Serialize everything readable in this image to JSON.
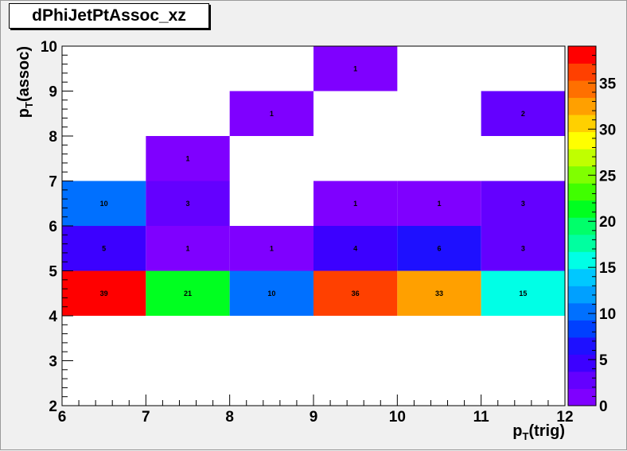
{
  "window": {
    "title": "dPhiJetPtAssoc_xz"
  },
  "chart_data": {
    "type": "heatmap",
    "title": "dPhiJetPtAssoc_xz",
    "xlabel": "p",
    "xlabel_sub": "T",
    "xlabel_rest": "(trig)",
    "ylabel": "p",
    "ylabel_sub": "T",
    "ylabel_rest": "(assoc)",
    "xlim": [
      6,
      12
    ],
    "ylim": [
      2,
      10
    ],
    "x_ticks": [
      "6",
      "7",
      "8",
      "9",
      "10",
      "11",
      "12"
    ],
    "y_ticks": [
      "2",
      "3",
      "4",
      "5",
      "6",
      "7",
      "8",
      "9",
      "10"
    ],
    "zlim": [
      0,
      39
    ],
    "z_ticks": [
      "0",
      "5",
      "10",
      "15",
      "20",
      "25",
      "30",
      "35"
    ],
    "bin_width_x": 1,
    "bin_width_y": 1,
    "cells": [
      {
        "x": 6,
        "y": 4,
        "value": 39,
        "label": "39"
      },
      {
        "x": 7,
        "y": 4,
        "value": 21,
        "label": "21"
      },
      {
        "x": 8,
        "y": 4,
        "value": 10,
        "label": "10"
      },
      {
        "x": 9,
        "y": 4,
        "value": 36,
        "label": "36"
      },
      {
        "x": 10,
        "y": 4,
        "value": 33,
        "label": "33"
      },
      {
        "x": 11,
        "y": 4,
        "value": 15,
        "label": "15"
      },
      {
        "x": 6,
        "y": 5,
        "value": 5,
        "label": "5"
      },
      {
        "x": 7,
        "y": 5,
        "value": 1,
        "label": "1"
      },
      {
        "x": 8,
        "y": 5,
        "value": 1,
        "label": "1"
      },
      {
        "x": 9,
        "y": 5,
        "value": 4,
        "label": "4"
      },
      {
        "x": 10,
        "y": 5,
        "value": 6,
        "label": "6"
      },
      {
        "x": 11,
        "y": 5,
        "value": 3,
        "label": "3"
      },
      {
        "x": 6,
        "y": 6,
        "value": 10,
        "label": "10"
      },
      {
        "x": 7,
        "y": 6,
        "value": 3,
        "label": "3"
      },
      {
        "x": 9,
        "y": 6,
        "value": 1,
        "label": "1"
      },
      {
        "x": 10,
        "y": 6,
        "value": 1,
        "label": "1"
      },
      {
        "x": 11,
        "y": 6,
        "value": 3,
        "label": "3"
      },
      {
        "x": 7,
        "y": 7,
        "value": 1,
        "label": "1"
      },
      {
        "x": 8,
        "y": 8,
        "value": 1,
        "label": "1"
      },
      {
        "x": 11,
        "y": 8,
        "value": 2,
        "label": "2"
      },
      {
        "x": 9,
        "y": 9,
        "value": 1,
        "label": "1"
      }
    ],
    "palette": [
      "#7f00ff",
      "#6400ff",
      "#3c00ff",
      "#1e10ff",
      "#0040ff",
      "#0070ff",
      "#00a0ff",
      "#00c8ff",
      "#00ffe6",
      "#00ffa0",
      "#00ff6a",
      "#00ff20",
      "#40ff00",
      "#80ff00",
      "#c0ff00",
      "#ffff00",
      "#ffd000",
      "#ffa000",
      "#ff7000",
      "#ff4000",
      "#ff0000"
    ],
    "plot_background": "#ffffff",
    "canvas_background": "#f0f0f0",
    "grid": false,
    "legend": "colorbar-right"
  }
}
